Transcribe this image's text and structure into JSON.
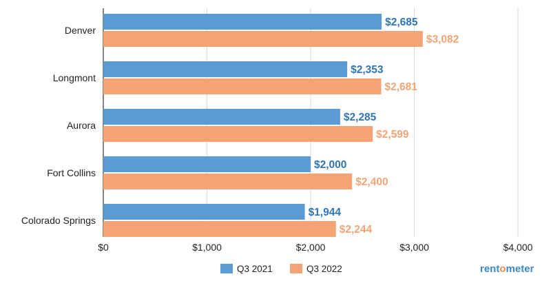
{
  "chart_data": {
    "type": "bar",
    "orientation": "horizontal",
    "categories": [
      "Denver",
      "Longmont",
      "Aurora",
      "Fort Collins",
      "Colorado Springs"
    ],
    "series": [
      {
        "name": "Q3 2021",
        "color": "#5b9bd5",
        "label_color": "#2f75b5",
        "values": [
          2685,
          2353,
          2285,
          2000,
          1944
        ],
        "labels": [
          "$2,685",
          "$2,353",
          "$2,285",
          "$2,000",
          "$1,944"
        ]
      },
      {
        "name": "Q3 2022",
        "color": "#f4a474",
        "label_color": "#f4a474",
        "values": [
          3082,
          2681,
          2599,
          2400,
          2244
        ],
        "labels": [
          "$3,082",
          "$2,681",
          "$2,599",
          "$2,400",
          "$2,244"
        ]
      }
    ],
    "xlim": [
      0,
      4000
    ],
    "x_ticks": [
      0,
      1000,
      2000,
      3000,
      4000
    ],
    "x_tick_labels": [
      "$0",
      "$1,000",
      "$2,000",
      "$3,000",
      "$4,000"
    ],
    "grid": true,
    "legend_position": "bottom-center",
    "title": "",
    "xlabel": "",
    "ylabel": ""
  },
  "brand": {
    "part1": "rent",
    "part2": "o",
    "part3": "meter",
    "primary_color": "#3c89c9",
    "accent_color": "#f08a3c"
  }
}
